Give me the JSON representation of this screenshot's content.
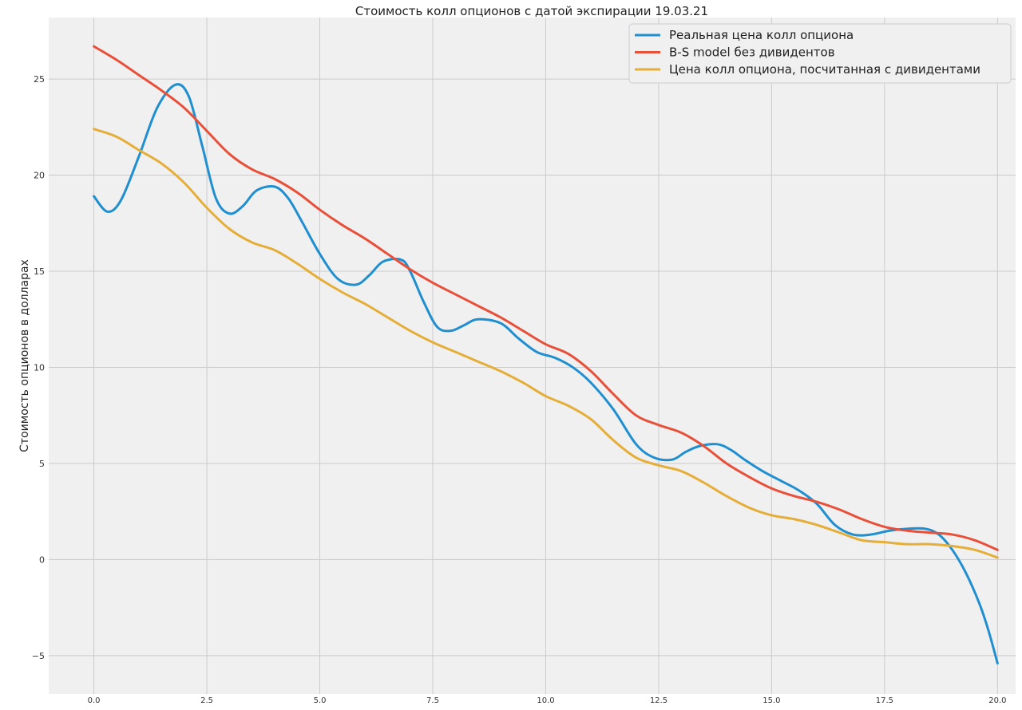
{
  "chart_data": {
    "type": "line",
    "title": "Стоимость колл опционов с датой экспирации 19.03.21",
    "xlabel": "",
    "ylabel": "Стоимость опционов в долларах",
    "xlim": [
      -1.0,
      20.4
    ],
    "ylim": [
      -7.0,
      28.2
    ],
    "xticks": [
      0.0,
      2.5,
      5.0,
      7.5,
      10.0,
      12.5,
      15.0,
      17.5,
      20.0
    ],
    "xtick_labels": [
      "0.0",
      "2.5",
      "5.0",
      "7.5",
      "10.0",
      "12.5",
      "15.0",
      "17.5",
      "20.0"
    ],
    "yticks": [
      -5,
      0,
      5,
      10,
      15,
      20,
      25
    ],
    "ytick_labels": [
      "−5",
      "0",
      "5",
      "10",
      "15",
      "20",
      "25"
    ],
    "grid": true,
    "legend_position": "top-right",
    "series": [
      {
        "name": "Реальная цена колл опциона",
        "color": "#1f8fd0",
        "x": [
          0.0,
          0.3,
          0.6,
          1.0,
          1.4,
          1.8,
          2.1,
          2.4,
          2.7,
          3.0,
          3.3,
          3.6,
          4.0,
          4.3,
          4.6,
          5.0,
          5.4,
          5.8,
          6.1,
          6.4,
          6.8,
          7.0,
          7.3,
          7.6,
          7.9,
          8.2,
          8.5,
          9.0,
          9.4,
          9.8,
          10.2,
          10.6,
          11.0,
          11.5,
          12.0,
          12.4,
          12.8,
          13.1,
          13.4,
          13.8,
          14.1,
          14.4,
          14.8,
          15.2,
          15.6,
          16.0,
          16.4,
          16.8,
          17.2,
          17.6,
          18.0,
          18.4,
          18.7,
          19.0,
          19.3,
          19.6,
          19.8,
          20.0
        ],
        "y": [
          18.9,
          18.1,
          18.7,
          21.0,
          23.5,
          24.7,
          24.1,
          21.5,
          18.8,
          18.0,
          18.4,
          19.2,
          19.4,
          18.8,
          17.6,
          15.9,
          14.6,
          14.3,
          14.8,
          15.5,
          15.6,
          15.0,
          13.4,
          12.1,
          11.9,
          12.2,
          12.5,
          12.3,
          11.5,
          10.8,
          10.5,
          10.0,
          9.2,
          7.8,
          6.0,
          5.3,
          5.2,
          5.6,
          5.9,
          6.0,
          5.7,
          5.2,
          4.6,
          4.1,
          3.6,
          2.9,
          1.8,
          1.3,
          1.3,
          1.5,
          1.6,
          1.6,
          1.3,
          0.5,
          -0.7,
          -2.3,
          -3.7,
          -5.4
        ]
      },
      {
        "name": "B-S model без дивидентов",
        "color": "#e8503a",
        "x": [
          0.0,
          0.5,
          1.0,
          1.5,
          2.0,
          2.5,
          3.0,
          3.5,
          4.0,
          4.5,
          5.0,
          5.5,
          6.0,
          6.5,
          7.0,
          7.5,
          8.0,
          8.5,
          9.0,
          9.5,
          10.0,
          10.5,
          11.0,
          11.5,
          12.0,
          12.5,
          13.0,
          13.5,
          14.0,
          14.5,
          15.0,
          15.5,
          16.0,
          16.5,
          17.0,
          17.5,
          18.0,
          18.5,
          19.0,
          19.5,
          20.0
        ],
        "y": [
          26.7,
          26.0,
          25.2,
          24.4,
          23.5,
          22.3,
          21.1,
          20.3,
          19.8,
          19.1,
          18.2,
          17.4,
          16.7,
          15.9,
          15.1,
          14.4,
          13.8,
          13.2,
          12.6,
          11.9,
          11.2,
          10.7,
          9.8,
          8.6,
          7.5,
          7.0,
          6.6,
          5.9,
          5.0,
          4.3,
          3.7,
          3.3,
          3.0,
          2.6,
          2.1,
          1.7,
          1.5,
          1.4,
          1.3,
          1.0,
          0.5
        ]
      },
      {
        "name": "Цена колл опциона, посчитанная с дивидентами",
        "color": "#e5ae38",
        "x": [
          0.0,
          0.5,
          1.0,
          1.5,
          2.0,
          2.5,
          3.0,
          3.5,
          4.0,
          4.5,
          5.0,
          5.5,
          6.0,
          6.5,
          7.0,
          7.5,
          8.0,
          8.5,
          9.0,
          9.5,
          10.0,
          10.5,
          11.0,
          11.5,
          12.0,
          12.5,
          13.0,
          13.5,
          14.0,
          14.5,
          15.0,
          15.5,
          16.0,
          16.5,
          17.0,
          17.5,
          18.0,
          18.5,
          19.0,
          19.5,
          20.0
        ],
        "y": [
          22.4,
          22.0,
          21.3,
          20.6,
          19.6,
          18.3,
          17.2,
          16.5,
          16.1,
          15.4,
          14.6,
          13.9,
          13.3,
          12.6,
          11.9,
          11.3,
          10.8,
          10.3,
          9.8,
          9.2,
          8.5,
          8.0,
          7.3,
          6.2,
          5.3,
          4.9,
          4.6,
          4.0,
          3.3,
          2.7,
          2.3,
          2.1,
          1.8,
          1.4,
          1.0,
          0.9,
          0.8,
          0.8,
          0.7,
          0.5,
          0.1
        ]
      }
    ]
  }
}
